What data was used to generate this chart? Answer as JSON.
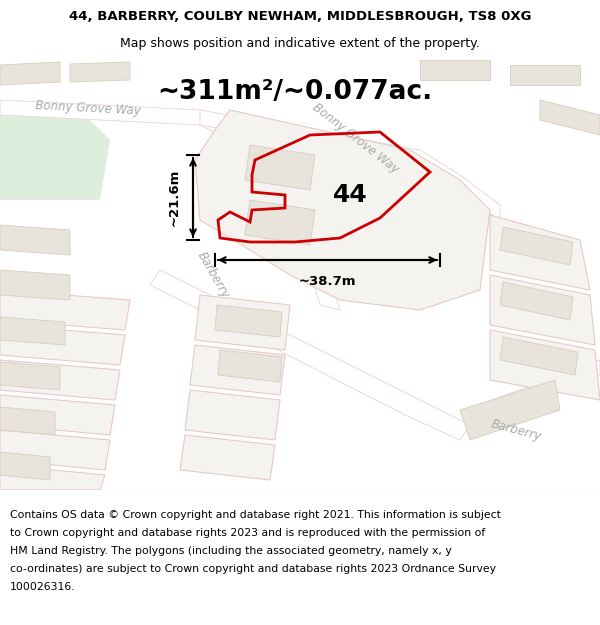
{
  "title_line1": "44, BARBERRY, COULBY NEWHAM, MIDDLESBROUGH, TS8 0XG",
  "title_line2": "Map shows position and indicative extent of the property.",
  "area_text": "~311m²/~0.077ac.",
  "label_44": "44",
  "dim_width": "~38.7m",
  "dim_height": "~21.6m",
  "street_bonny_grove_way_1": "Bonny Grove Way",
  "street_bonny_grove_way_2": "Bonny Grove Way",
  "street_barberry_1": "Barberry",
  "street_barberry_2": "Barberry",
  "footer": "Contains OS data © Crown copyright and database right 2021. This information is subject to Crown copyright and database rights 2023 and is reproduced with the permission of HM Land Registry. The polygons (including the associated geometry, namely x, y co-ordinates) are subject to Crown copyright and database rights 2023 Ordnance Survey 100026316.",
  "map_bg": "#f5f3ef",
  "road_color": "#ffffff",
  "road_outline_color": "#e8c8c8",
  "highlight_color": "#cc0000",
  "building_color": "#e8e4dc",
  "building_outline": "#d4ccc0",
  "plot_outline": "#e8c8c8",
  "green_color": "#ddeedd",
  "title_fontsize": 9.5,
  "area_fontsize": 19,
  "label_fontsize": 18,
  "footer_fontsize": 7.8,
  "street_fontsize": 8.5
}
